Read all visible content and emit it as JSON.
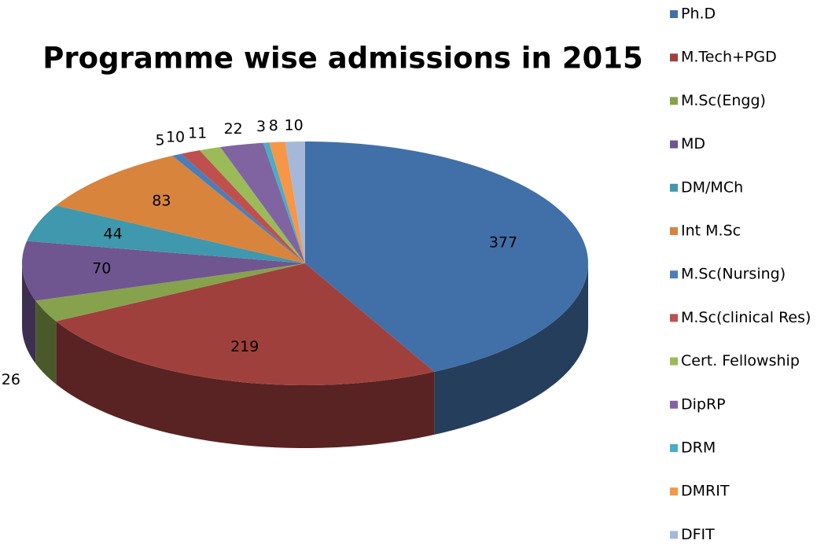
{
  "chart_data": {
    "type": "pie",
    "title": "Programme wise admissions in 2015",
    "categories": [
      "Ph.D",
      "M.Tech+PGD",
      "M.Sc(Engg)",
      "MD",
      "DM/MCh",
      "Int M.Sc",
      "M.Sc(Nursing)",
      "M.Sc(clinical Res)",
      "Cert. Fellowship",
      "DipRP",
      "DRM",
      "DMRIT",
      "DFIT"
    ],
    "values": [
      377,
      219,
      26,
      70,
      44,
      83,
      5,
      10,
      11,
      22,
      3,
      8,
      10
    ],
    "colors": [
      "#4170a8",
      "#a0403d",
      "#87a24c",
      "#6f5690",
      "#3f98ae",
      "#d9843c",
      "#4a7ebb",
      "#c0504d",
      "#9bbb59",
      "#8064a2",
      "#4bacc6",
      "#f79646",
      "#a5b8da"
    ],
    "legend": "right"
  }
}
